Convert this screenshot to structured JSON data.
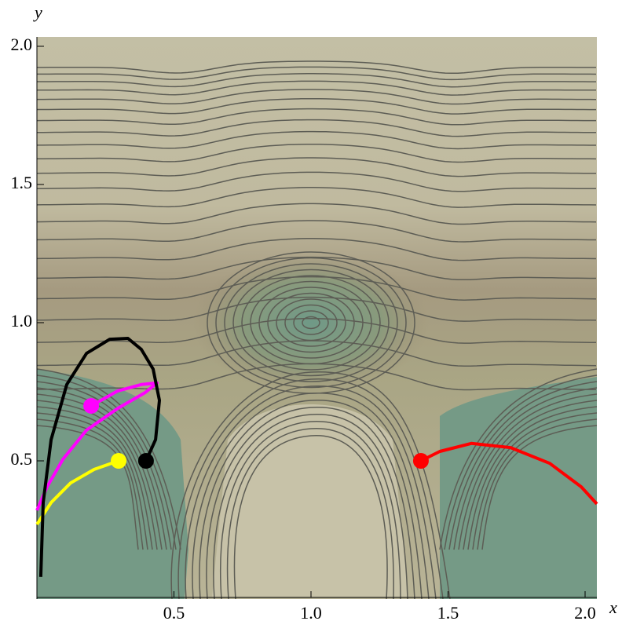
{
  "chart_data": {
    "type": "contour",
    "x_label": "x",
    "y_label": "y",
    "xlim": [
      0,
      2.043
    ],
    "ylim": [
      0,
      2.034
    ],
    "xticks": [
      0.5,
      {
        "value": 1.0,
        "label": "1.0"
      },
      1.5,
      {
        "value": 2.0,
        "label": "2.0"
      }
    ],
    "yticks": [
      0.5,
      {
        "value": 1.0,
        "label": "1.0"
      },
      1.5,
      {
        "value": 2.0,
        "label": "2.0"
      }
    ],
    "series": [
      {
        "color": "#ff0000",
        "x": [
          1.401,
          1.47,
          1.585,
          1.728,
          1.871,
          1.986,
          2.043
        ],
        "y": [
          0.5,
          0.534,
          0.563,
          0.548,
          0.491,
          0.406,
          0.344
        ]
      },
      {
        "color": "#ffff00",
        "x": [
          0.298,
          0.209,
          0.123,
          0.052,
          0
        ],
        "y": [
          0.5,
          0.469,
          0.42,
          0.349,
          0.27
        ]
      },
      {
        "color": "#ff00ff",
        "x": [
          0.198,
          0.295,
          0.381,
          0.438,
          0.395,
          0.295,
          0.181,
          0.095,
          0.037,
          0
        ],
        "y": [
          0.699,
          0.753,
          0.776,
          0.782,
          0.747,
          0.69,
          0.611,
          0.506,
          0.406,
          0.321
        ]
      },
      {
        "color": "#000000",
        "x": [
          0.398,
          0.433,
          0.447,
          0.424,
          0.381,
          0.332,
          0.266,
          0.181,
          0.109,
          0.052,
          0.023,
          0.014
        ],
        "y": [
          0.5,
          0.577,
          0.719,
          0.832,
          0.903,
          0.943,
          0.94,
          0.889,
          0.776,
          0.577,
          0.349,
          0.08
        ]
      }
    ]
  }
}
